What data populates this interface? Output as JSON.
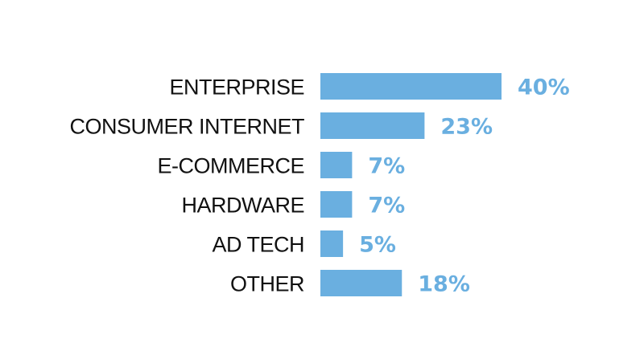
{
  "chart_data": {
    "type": "bar",
    "orientation": "horizontal",
    "categories": [
      "ENTERPRISE",
      "CONSUMER INTERNET",
      "E-COMMERCE",
      "HARDWARE",
      "AD TECH",
      "OTHER"
    ],
    "values": [
      40,
      23,
      7,
      7,
      5,
      18
    ],
    "value_labels": [
      "40%",
      "23%",
      "7%",
      "7%",
      "5%",
      "18%"
    ],
    "unit": "%",
    "xlim": [
      0,
      40
    ],
    "grid": false,
    "legend": "none",
    "bar_color": "#6aafe0",
    "label_color": "#6aafe0"
  }
}
